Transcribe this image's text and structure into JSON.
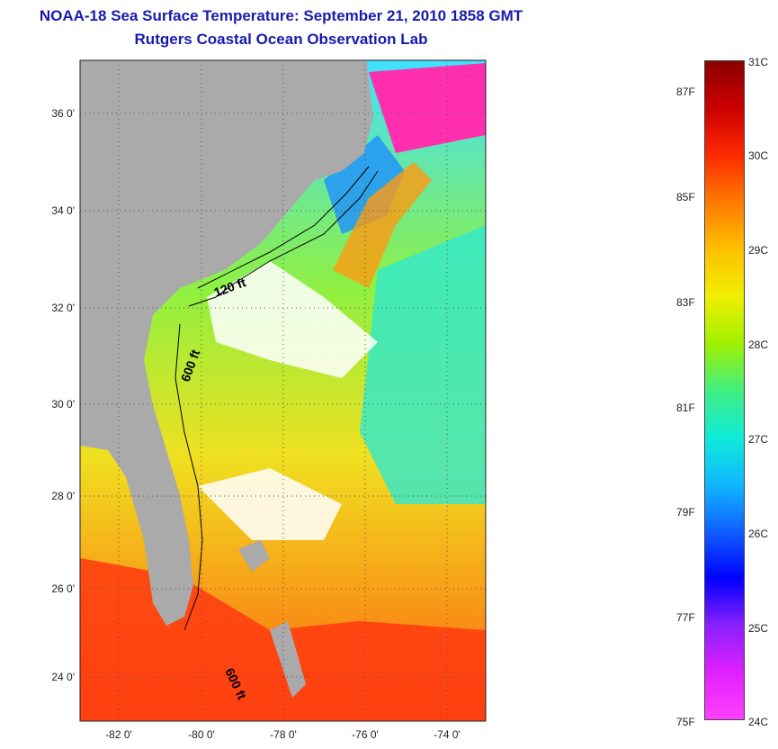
{
  "header": {
    "title": "NOAA-18 Sea Surface Temperature:  September 21, 2010 1858 GMT",
    "subtitle": "Rutgers Coastal Ocean Observation Lab"
  },
  "map": {
    "lon_ticks": [
      "-82 0'",
      "-80 0'",
      "-78 0'",
      "-76 0'",
      "-74 0'"
    ],
    "lat_ticks": [
      "36 0'",
      "34 0'",
      "32 0'",
      "30 0'",
      "28 0'",
      "26 0'",
      "24 0'"
    ],
    "contour_labels": [
      "120 ft",
      "600 ft",
      "600 ft"
    ],
    "colors": {
      "land": "#aaaaaa",
      "cloud": "#ffffff"
    }
  },
  "colorbar": {
    "celsius": [
      "31C",
      "30C",
      "29C",
      "28C",
      "27C",
      "26C",
      "25C",
      "24C"
    ],
    "fahrenheit": [
      "87F",
      "85F",
      "83F",
      "81F",
      "79F",
      "77F",
      "75F"
    ],
    "gradient": [
      "#8b0000",
      "#cc0000",
      "#ff2a00",
      "#ff7a00",
      "#ffc000",
      "#f0ee00",
      "#a0f000",
      "#40ee80",
      "#10ecd8",
      "#10b8ff",
      "#1060ff",
      "#0000ff",
      "#8a20ff",
      "#e020ff",
      "#ff40ff"
    ]
  }
}
